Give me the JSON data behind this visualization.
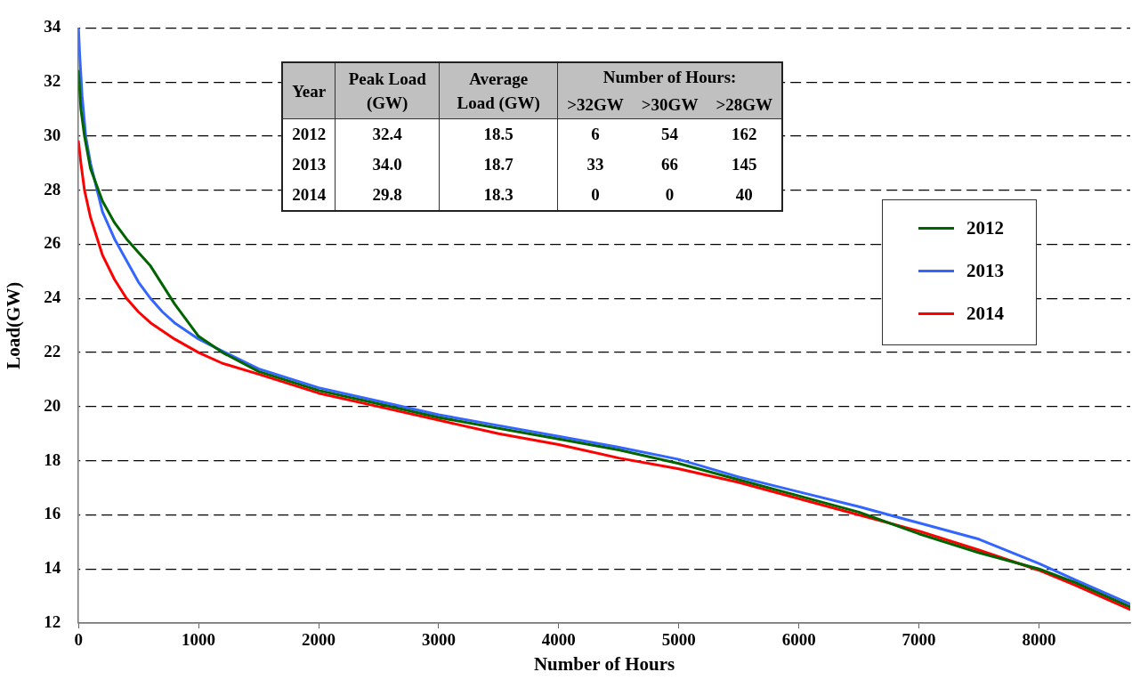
{
  "chart_data": {
    "type": "line",
    "xlabel": "Number of Hours",
    "ylabel": "Load(GW)",
    "xlim": [
      0,
      8760
    ],
    "xticks": [
      0,
      1000,
      2000,
      3000,
      4000,
      5000,
      6000,
      7000,
      8000
    ],
    "ylim": [
      12,
      34
    ],
    "yticks": [
      12,
      14,
      16,
      18,
      20,
      22,
      24,
      26,
      28,
      30,
      32,
      34
    ],
    "grid": "y",
    "legend": "right",
    "marker": "none",
    "line_style": "solid",
    "series": [
      {
        "name": "2012",
        "color": "#006400",
        "x": [
          0,
          20,
          50,
          100,
          200,
          300,
          400,
          500,
          600,
          700,
          800,
          1000,
          1200,
          1500,
          2000,
          2500,
          3000,
          3500,
          4000,
          4500,
          5000,
          5500,
          6000,
          6500,
          7000,
          7500,
          8000,
          8300,
          8760
        ],
        "values": [
          32.4,
          31,
          30,
          28.8,
          27.6,
          26.8,
          26.2,
          25.7,
          25.2,
          24.5,
          23.8,
          22.6,
          22.0,
          21.3,
          20.6,
          20.1,
          19.6,
          19.2,
          18.8,
          18.4,
          17.9,
          17.3,
          16.7,
          16.1,
          15.3,
          14.6,
          14.0,
          13.5,
          12.6
        ]
      },
      {
        "name": "2013",
        "color": "#3366ff",
        "x": [
          0,
          10,
          30,
          60,
          100,
          200,
          300,
          400,
          500,
          600,
          700,
          800,
          1000,
          1200,
          1500,
          2000,
          2500,
          3000,
          3500,
          4000,
          4500,
          5000,
          5500,
          6000,
          6500,
          7000,
          7500,
          8000,
          8300,
          8760
        ],
        "values": [
          34.0,
          33,
          31.5,
          30,
          29,
          27.2,
          26.2,
          25.4,
          24.6,
          24.0,
          23.5,
          23.1,
          22.5,
          22.05,
          21.4,
          20.7,
          20.2,
          19.7,
          19.3,
          18.9,
          18.5,
          18.05,
          17.4,
          16.85,
          16.3,
          15.7,
          15.1,
          14.2,
          13.6,
          12.7
        ]
      },
      {
        "name": "2014",
        "color": "#ff0000",
        "x": [
          0,
          20,
          50,
          100,
          200,
          300,
          400,
          500,
          600,
          800,
          1000,
          1200,
          1500,
          2000,
          2500,
          3000,
          3500,
          4000,
          4500,
          5000,
          5500,
          6000,
          6500,
          7000,
          7500,
          8000,
          8300,
          8760
        ],
        "values": [
          29.8,
          29,
          28,
          27,
          25.6,
          24.7,
          24.0,
          23.5,
          23.1,
          22.5,
          22.0,
          21.6,
          21.2,
          20.5,
          20.0,
          19.5,
          19.0,
          18.6,
          18.1,
          17.7,
          17.2,
          16.6,
          16.0,
          15.4,
          14.7,
          13.95,
          13.4,
          12.5
        ]
      }
    ],
    "annotations": [
      "Year",
      "Peak Load (GW)",
      "Average Load (GW)",
      "Number of Hours:",
      ">32GW",
      ">30GW",
      ">28GW",
      "2012",
      "32.4",
      "18.5",
      "6",
      "54",
      "162",
      "2013",
      "34.0",
      "18.7",
      "33",
      "66",
      "145",
      "2014",
      "29.8",
      "18.3",
      "0",
      "0",
      "40"
    ]
  }
}
